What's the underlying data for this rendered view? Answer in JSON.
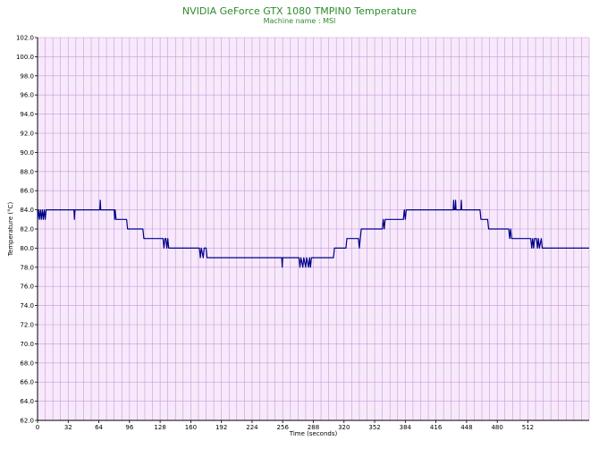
{
  "chart_data": {
    "type": "line",
    "title": "NVIDIA GeForce GTX 1080 TMPIN0 Temperature",
    "subtitle": "Machine name : MSI",
    "xlabel": "Time (seconds)",
    "ylabel": "Temperature (°C)",
    "xlim": [
      0,
      576
    ],
    "ylim": [
      62,
      102
    ],
    "xticks": [
      0,
      32,
      64,
      96,
      128,
      160,
      192,
      224,
      256,
      288,
      320,
      352,
      384,
      416,
      448,
      480,
      512
    ],
    "yticks": [
      62.0,
      64.0,
      66.0,
      68.0,
      70.0,
      72.0,
      74.0,
      76.0,
      78.0,
      80.0,
      82.0,
      84.0,
      86.0,
      88.0,
      90.0,
      92.0,
      94.0,
      96.0,
      98.0,
      100.0,
      102.0
    ],
    "grid": true,
    "colors": {
      "plot_background": "#f7e9fb",
      "grid": "#c89ad8",
      "line": "#00008b",
      "title": "#2e8b2e"
    },
    "series": [
      {
        "points": [
          [
            0,
            83
          ],
          [
            1,
            84
          ],
          [
            2,
            83
          ],
          [
            3,
            84
          ],
          [
            4,
            83
          ],
          [
            5,
            84
          ],
          [
            6,
            83
          ],
          [
            7,
            84
          ],
          [
            8,
            83
          ],
          [
            9,
            84
          ],
          [
            38,
            84
          ],
          [
            38.5,
            83
          ],
          [
            39,
            84
          ],
          [
            65,
            84
          ],
          [
            65.5,
            85
          ],
          [
            66,
            84
          ],
          [
            80,
            84
          ],
          [
            80.5,
            83
          ],
          [
            81,
            84
          ],
          [
            82,
            83
          ],
          [
            93,
            83
          ],
          [
            94,
            82
          ],
          [
            110,
            82
          ],
          [
            111,
            81
          ],
          [
            131,
            81
          ],
          [
            132,
            80
          ],
          [
            133,
            81
          ],
          [
            134,
            81
          ],
          [
            135,
            80
          ],
          [
            136,
            81
          ],
          [
            137,
            80
          ],
          [
            169,
            80
          ],
          [
            170,
            79
          ],
          [
            171,
            80
          ],
          [
            173,
            79
          ],
          [
            174,
            80
          ],
          [
            176,
            80
          ],
          [
            177,
            79
          ],
          [
            255,
            79
          ],
          [
            255.5,
            78
          ],
          [
            256,
            79
          ],
          [
            273,
            79
          ],
          [
            274,
            78
          ],
          [
            275,
            79
          ],
          [
            277,
            78
          ],
          [
            278,
            79
          ],
          [
            280,
            78
          ],
          [
            281,
            79
          ],
          [
            283,
            78
          ],
          [
            284,
            79
          ],
          [
            285,
            78
          ],
          [
            286,
            79
          ],
          [
            309,
            79
          ],
          [
            310,
            80
          ],
          [
            322,
            80
          ],
          [
            323,
            81
          ],
          [
            335,
            81
          ],
          [
            336,
            80
          ],
          [
            337,
            81
          ],
          [
            338,
            82
          ],
          [
            360,
            82
          ],
          [
            361,
            83
          ],
          [
            362,
            82
          ],
          [
            363,
            83
          ],
          [
            382,
            83
          ],
          [
            383,
            84
          ],
          [
            384,
            83
          ],
          [
            385,
            84
          ],
          [
            434,
            84
          ],
          [
            434.5,
            85
          ],
          [
            435,
            84
          ],
          [
            436,
            84
          ],
          [
            436.5,
            85
          ],
          [
            437,
            84
          ],
          [
            442,
            84
          ],
          [
            442.5,
            85
          ],
          [
            443,
            84
          ],
          [
            462,
            84
          ],
          [
            463,
            83
          ],
          [
            465,
            83
          ],
          [
            470,
            83
          ],
          [
            471,
            82
          ],
          [
            492,
            82
          ],
          [
            493,
            81
          ],
          [
            494,
            82
          ],
          [
            495,
            81
          ],
          [
            515,
            81
          ],
          [
            516,
            80
          ],
          [
            517,
            81
          ],
          [
            518,
            80
          ],
          [
            519,
            81
          ],
          [
            521,
            81
          ],
          [
            522,
            80
          ],
          [
            523,
            81
          ],
          [
            524,
            80
          ],
          [
            526,
            81
          ],
          [
            527,
            80
          ],
          [
            576,
            80
          ]
        ]
      }
    ]
  }
}
